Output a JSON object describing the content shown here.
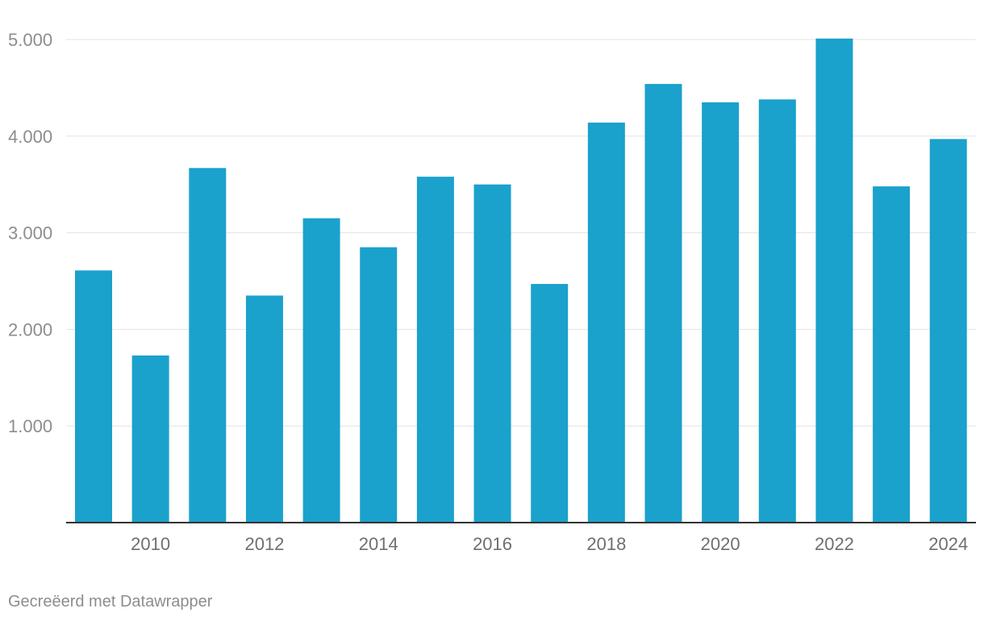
{
  "chart_data": {
    "type": "bar",
    "categories": [
      "2009",
      "2010",
      "2011",
      "2012",
      "2013",
      "2014",
      "2015",
      "2016",
      "2017",
      "2018",
      "2019",
      "2020",
      "2021",
      "2022",
      "2023",
      "2024"
    ],
    "x_tick_labels": [
      "2010",
      "2012",
      "2014",
      "2016",
      "2018",
      "2020",
      "2022",
      "2024"
    ],
    "series": [
      {
        "name": "",
        "values": [
          2610,
          1730,
          3670,
          2350,
          3150,
          2850,
          3580,
          3500,
          2470,
          4140,
          4540,
          4350,
          4380,
          5010,
          3480,
          3970
        ]
      }
    ],
    "y_ticks": [
      1000,
      2000,
      3000,
      4000,
      5000
    ],
    "y_tick_labels": [
      "1.000",
      "2.000",
      "3.000",
      "4.000",
      "5.000"
    ],
    "ylim": [
      0,
      5000
    ],
    "grid": true,
    "bar_color": "#1aa1cc",
    "title": "",
    "xlabel": "",
    "ylabel": ""
  },
  "footer": {
    "credit": "Gecreëerd met Datawrapper"
  }
}
